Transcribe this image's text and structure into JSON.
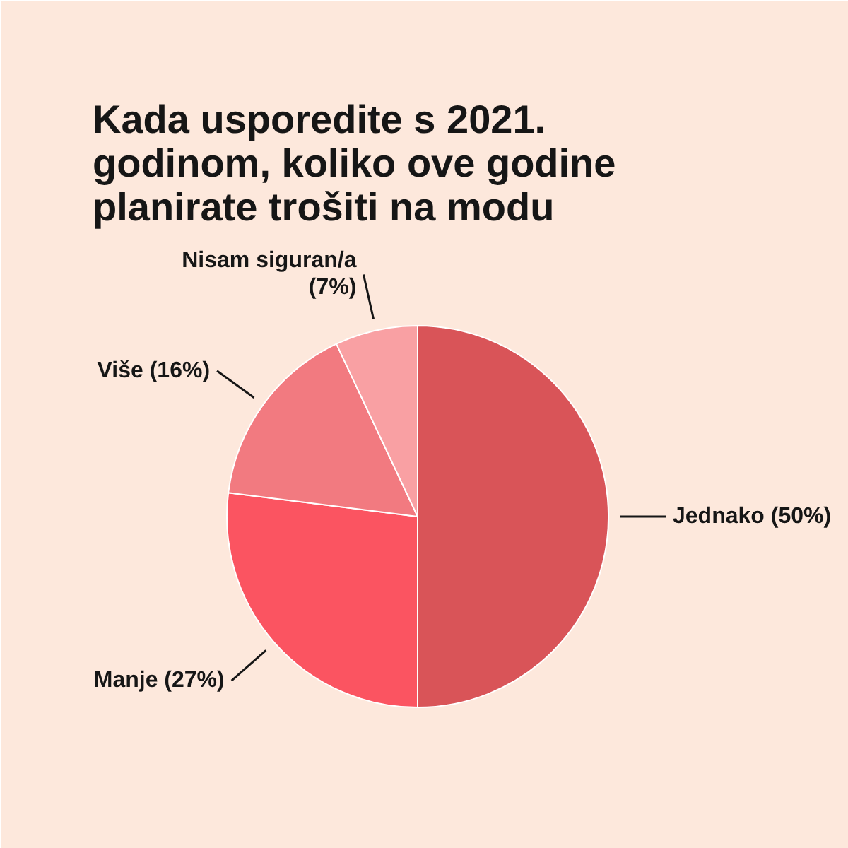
{
  "chart_data": {
    "type": "pie",
    "title": "Kada usporedite s 2021. godinom, koliko ove godine planirate trošiti na modu",
    "categories": [
      "Jednako",
      "Manje",
      "Više",
      "Nisam siguran/a"
    ],
    "values": [
      50,
      27,
      16,
      7
    ],
    "colors": [
      "#d95458",
      "#fb5461",
      "#f27a80",
      "#f9a0a3"
    ],
    "value_labels": [
      "(50%)",
      "(27%)",
      "(16%)",
      "(7%)"
    ]
  }
}
